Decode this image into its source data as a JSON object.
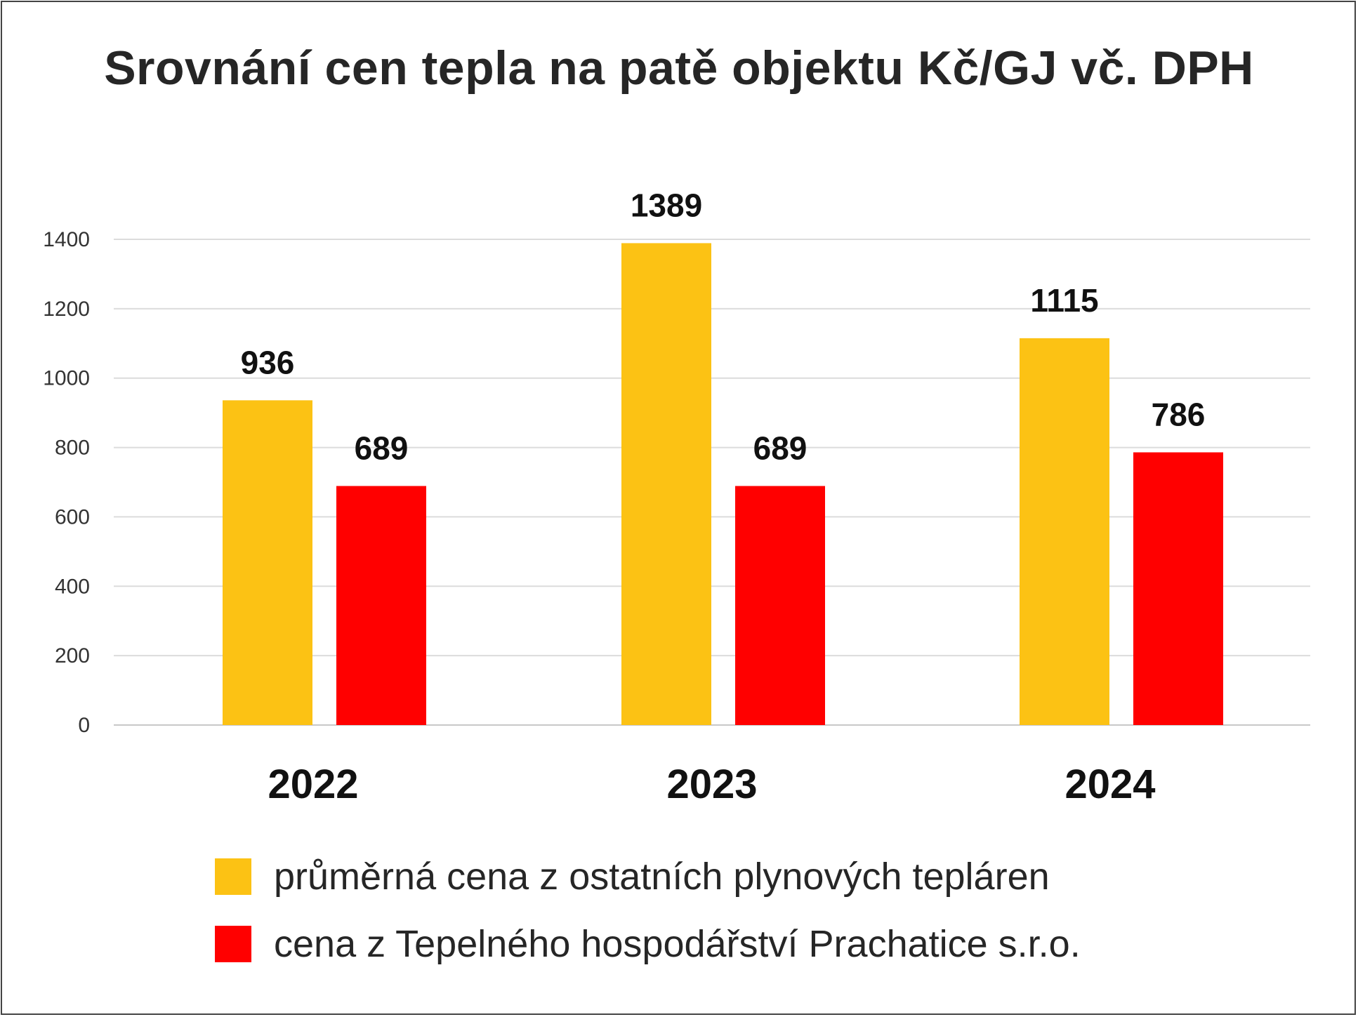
{
  "chart_data": {
    "type": "bar",
    "title": "Srovnání cen tepla na patě objektu Kč/GJ vč. DPH",
    "xlabel": "",
    "ylabel": "",
    "ylim": [
      0,
      1400
    ],
    "yticks": [
      0,
      200,
      400,
      600,
      800,
      1000,
      1200,
      1400
    ],
    "grid": true,
    "legend_position": "bottom",
    "categories": [
      "2022",
      "2023",
      "2024"
    ],
    "series": [
      {
        "name": "průměrná cena z ostatních plynových tepláren",
        "color": "#FCC214",
        "values": [
          936,
          1389,
          1115
        ]
      },
      {
        "name": "cena z Tepelného hospodářství Prachatice s.r.o.",
        "color": "#FF0000",
        "values": [
          689,
          689,
          786
        ]
      }
    ]
  }
}
